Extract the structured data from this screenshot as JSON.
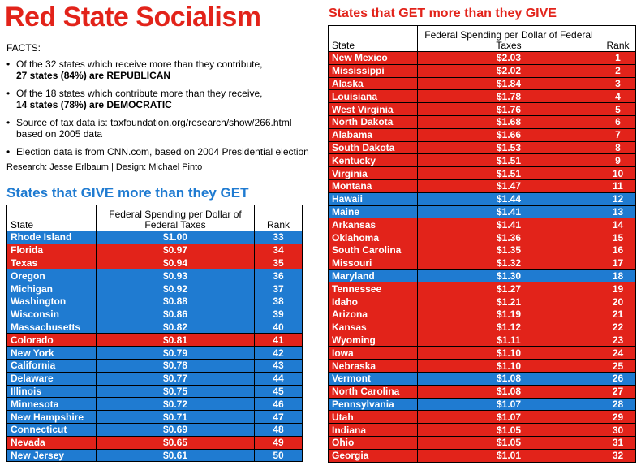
{
  "title": "Red State Socialism",
  "facts": {
    "heading": "FACTS:",
    "items": [
      {
        "text": "Of the 32 states which receive more than they contribute,",
        "bold": "27 states (84%) are REPUBLICAN"
      },
      {
        "text": "Of the 18 states which contribute more than they receive,",
        "bold": "14 states (78%) are DEMOCRATIC"
      },
      {
        "text": "Source of tax data is: taxfoundation.org/research/show/266.html based on 2005 data",
        "bold": ""
      },
      {
        "text": "Election data is from CNN.com, based on 2004 Presidential election",
        "bold": ""
      }
    ],
    "credit": "Research: Jesse Erlbaum | Design: Michael Pinto"
  },
  "colors": {
    "red": "#e2231a",
    "blue": "#1f7bd1"
  },
  "chart_data": [
    {
      "type": "table",
      "title": "States that GIVE more than they GET",
      "columns": [
        "State",
        "Federal Spending per Dollar of Federal Taxes",
        "Rank"
      ],
      "rows": [
        {
          "state": "Rhode Island",
          "value": "$1.00",
          "rank": "33",
          "party": "blue"
        },
        {
          "state": "Florida",
          "value": "$0.97",
          "rank": "34",
          "party": "red"
        },
        {
          "state": "Texas",
          "value": "$0.94",
          "rank": "35",
          "party": "red"
        },
        {
          "state": "Oregon",
          "value": "$0.93",
          "rank": "36",
          "party": "blue"
        },
        {
          "state": "Michigan",
          "value": "$0.92",
          "rank": "37",
          "party": "blue"
        },
        {
          "state": "Washington",
          "value": "$0.88",
          "rank": "38",
          "party": "blue"
        },
        {
          "state": "Wisconsin",
          "value": "$0.86",
          "rank": "39",
          "party": "blue"
        },
        {
          "state": "Massachusetts",
          "value": "$0.82",
          "rank": "40",
          "party": "blue"
        },
        {
          "state": "Colorado",
          "value": "$0.81",
          "rank": "41",
          "party": "red"
        },
        {
          "state": "New York",
          "value": "$0.79",
          "rank": "42",
          "party": "blue"
        },
        {
          "state": "California",
          "value": "$0.78",
          "rank": "43",
          "party": "blue"
        },
        {
          "state": "Delaware",
          "value": "$0.77",
          "rank": "44",
          "party": "blue"
        },
        {
          "state": "Illinois",
          "value": "$0.75",
          "rank": "45",
          "party": "blue"
        },
        {
          "state": "Minnesota",
          "value": "$0.72",
          "rank": "46",
          "party": "blue"
        },
        {
          "state": "New Hampshire",
          "value": "$0.71",
          "rank": "47",
          "party": "blue"
        },
        {
          "state": "Connecticut",
          "value": "$0.69",
          "rank": "48",
          "party": "blue"
        },
        {
          "state": "Nevada",
          "value": "$0.65",
          "rank": "49",
          "party": "red"
        },
        {
          "state": "New Jersey",
          "value": "$0.61",
          "rank": "50",
          "party": "blue"
        }
      ]
    },
    {
      "type": "table",
      "title": "States that GET more than they GIVE",
      "columns": [
        "State",
        "Federal Spending per Dollar of Federal Taxes",
        "Rank"
      ],
      "rows": [
        {
          "state": "New Mexico",
          "value": "$2.03",
          "rank": "1",
          "party": "red"
        },
        {
          "state": "Mississippi",
          "value": "$2.02",
          "rank": "2",
          "party": "red"
        },
        {
          "state": "Alaska",
          "value": "$1.84",
          "rank": "3",
          "party": "red"
        },
        {
          "state": "Louisiana",
          "value": "$1.78",
          "rank": "4",
          "party": "red"
        },
        {
          "state": "West Virginia",
          "value": "$1.76",
          "rank": "5",
          "party": "red"
        },
        {
          "state": "North Dakota",
          "value": "$1.68",
          "rank": "6",
          "party": "red"
        },
        {
          "state": "Alabama",
          "value": "$1.66",
          "rank": "7",
          "party": "red"
        },
        {
          "state": "South Dakota",
          "value": "$1.53",
          "rank": "8",
          "party": "red"
        },
        {
          "state": "Kentucky",
          "value": "$1.51",
          "rank": "9",
          "party": "red"
        },
        {
          "state": "Virginia",
          "value": "$1.51",
          "rank": "10",
          "party": "red"
        },
        {
          "state": "Montana",
          "value": "$1.47",
          "rank": "11",
          "party": "red"
        },
        {
          "state": "Hawaii",
          "value": "$1.44",
          "rank": "12",
          "party": "blue"
        },
        {
          "state": "Maine",
          "value": "$1.41",
          "rank": "13",
          "party": "blue"
        },
        {
          "state": "Arkansas",
          "value": "$1.41",
          "rank": "14",
          "party": "red"
        },
        {
          "state": "Oklahoma",
          "value": "$1.36",
          "rank": "15",
          "party": "red"
        },
        {
          "state": "South Carolina",
          "value": "$1.35",
          "rank": "16",
          "party": "red"
        },
        {
          "state": "Missouri",
          "value": "$1.32",
          "rank": "17",
          "party": "red"
        },
        {
          "state": "Maryland",
          "value": "$1.30",
          "rank": "18",
          "party": "blue"
        },
        {
          "state": "Tennessee",
          "value": "$1.27",
          "rank": "19",
          "party": "red"
        },
        {
          "state": "Idaho",
          "value": "$1.21",
          "rank": "20",
          "party": "red"
        },
        {
          "state": "Arizona",
          "value": "$1.19",
          "rank": "21",
          "party": "red"
        },
        {
          "state": "Kansas",
          "value": "$1.12",
          "rank": "22",
          "party": "red"
        },
        {
          "state": "Wyoming",
          "value": "$1.11",
          "rank": "23",
          "party": "red"
        },
        {
          "state": "Iowa",
          "value": "$1.10",
          "rank": "24",
          "party": "red"
        },
        {
          "state": "Nebraska",
          "value": "$1.10",
          "rank": "25",
          "party": "red"
        },
        {
          "state": "Vermont",
          "value": "$1.08",
          "rank": "26",
          "party": "blue"
        },
        {
          "state": "North Carolina",
          "value": "$1.08",
          "rank": "27",
          "party": "red"
        },
        {
          "state": "Pennsylvania",
          "value": "$1.07",
          "rank": "28",
          "party": "blue"
        },
        {
          "state": "Utah",
          "value": "$1.07",
          "rank": "29",
          "party": "red"
        },
        {
          "state": "Indiana",
          "value": "$1.05",
          "rank": "30",
          "party": "red"
        },
        {
          "state": "Ohio",
          "value": "$1.05",
          "rank": "31",
          "party": "red"
        },
        {
          "state": "Georgia",
          "value": "$1.01",
          "rank": "32",
          "party": "red"
        }
      ]
    }
  ]
}
